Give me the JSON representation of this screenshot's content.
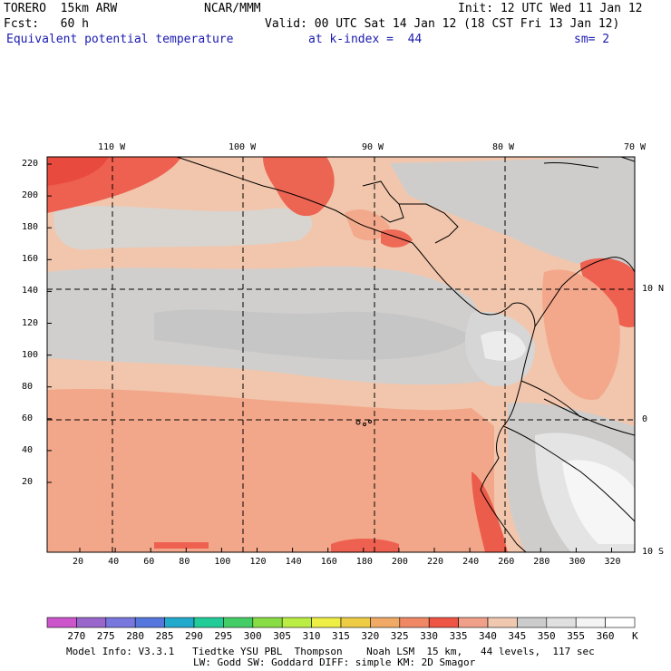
{
  "header": {
    "model": "TORERO  15km ARW",
    "org": "NCAR/MMM",
    "init": "Init: 12 UTC Wed 11 Jan 12",
    "fcst": "Fcst:   60 h",
    "valid": "Valid: 00 UTC Sat 14 Jan 12 (18 CST Fri 13 Jan 12)",
    "field": "Equivalent potential temperature",
    "level": "at k-index =  44",
    "smooth": "sm= 2"
  },
  "map": {
    "lon_labels": [
      "110 W",
      "100 W",
      "90 W",
      "80 W",
      "70 W"
    ],
    "lat_labels": [
      "10 N",
      "0",
      "10 S"
    ],
    "y_ticks": [
      "220",
      "200",
      "180",
      "160",
      "140",
      "120",
      "100",
      "80",
      "60",
      "40",
      "20"
    ],
    "x_ticks": [
      "20",
      "40",
      "60",
      "80",
      "100",
      "120",
      "140",
      "160",
      "180",
      "200",
      "220",
      "240",
      "260",
      "280",
      "300",
      "320"
    ],
    "region": "Eastern tropical Pacific, Central America, northwestern South America"
  },
  "colorbar": {
    "labels": [
      "270",
      "275",
      "280",
      "285",
      "290",
      "295",
      "300",
      "305",
      "310",
      "315",
      "320",
      "325",
      "330",
      "335",
      "340",
      "345",
      "350",
      "355",
      "360"
    ],
    "unit": "K",
    "colors": [
      "#cc55cc",
      "#9966cc",
      "#7777dd",
      "#5577dd",
      "#22aacc",
      "#22cc99",
      "#44cc66",
      "#88dd44",
      "#bbee44",
      "#eeee44",
      "#eecc44",
      "#f0aa66",
      "#f08866",
      "#ee5544",
      "#f0a088",
      "#f0c8b0",
      "#cccccc",
      "#e0e0e0",
      "#f4f4f4",
      "#ffffff"
    ]
  },
  "footer": {
    "line1": "Model Info: V3.3.1   Tiedtke YSU PBL  Thompson    Noah LSM  15 km,   44 levels,  117 sec",
    "line2": "LW: Godd SW: Goddard DIFF: simple KM: 2D Smagor"
  }
}
